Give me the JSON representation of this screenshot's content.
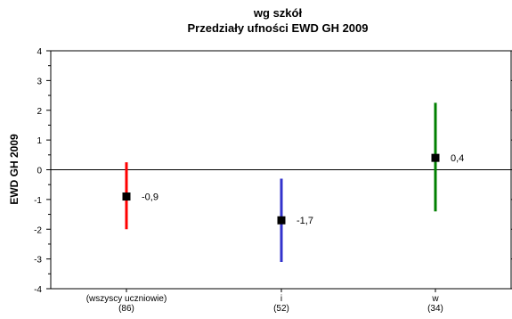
{
  "chart_data": {
    "type": "errorbar",
    "title": "wg szkół",
    "subtitle": "Przedziały ufności EWD GH 2009",
    "ylabel": "EWD GH 2009",
    "xlabel": "",
    "ylim": [
      -4,
      4
    ],
    "yticks": [
      4,
      3,
      2,
      1,
      0,
      -1,
      -2,
      -3,
      -4
    ],
    "grid": false,
    "legend": "none",
    "categories": [
      {
        "label": "(wszyscy uczniowie)",
        "count": "(86)"
      },
      {
        "label": "i",
        "count": "(52)"
      },
      {
        "label": "w",
        "count": "(34)"
      }
    ],
    "points": [
      {
        "value": -0.9,
        "label": "-0,9",
        "lower": -2.0,
        "upper": 0.25,
        "color": "#ff0000"
      },
      {
        "value": -1.7,
        "label": "-1,7",
        "lower": -3.1,
        "upper": -0.3,
        "color": "#3333cc"
      },
      {
        "value": 0.4,
        "label": "0,4",
        "lower": -1.4,
        "upper": 2.25,
        "color": "#008000"
      }
    ]
  }
}
